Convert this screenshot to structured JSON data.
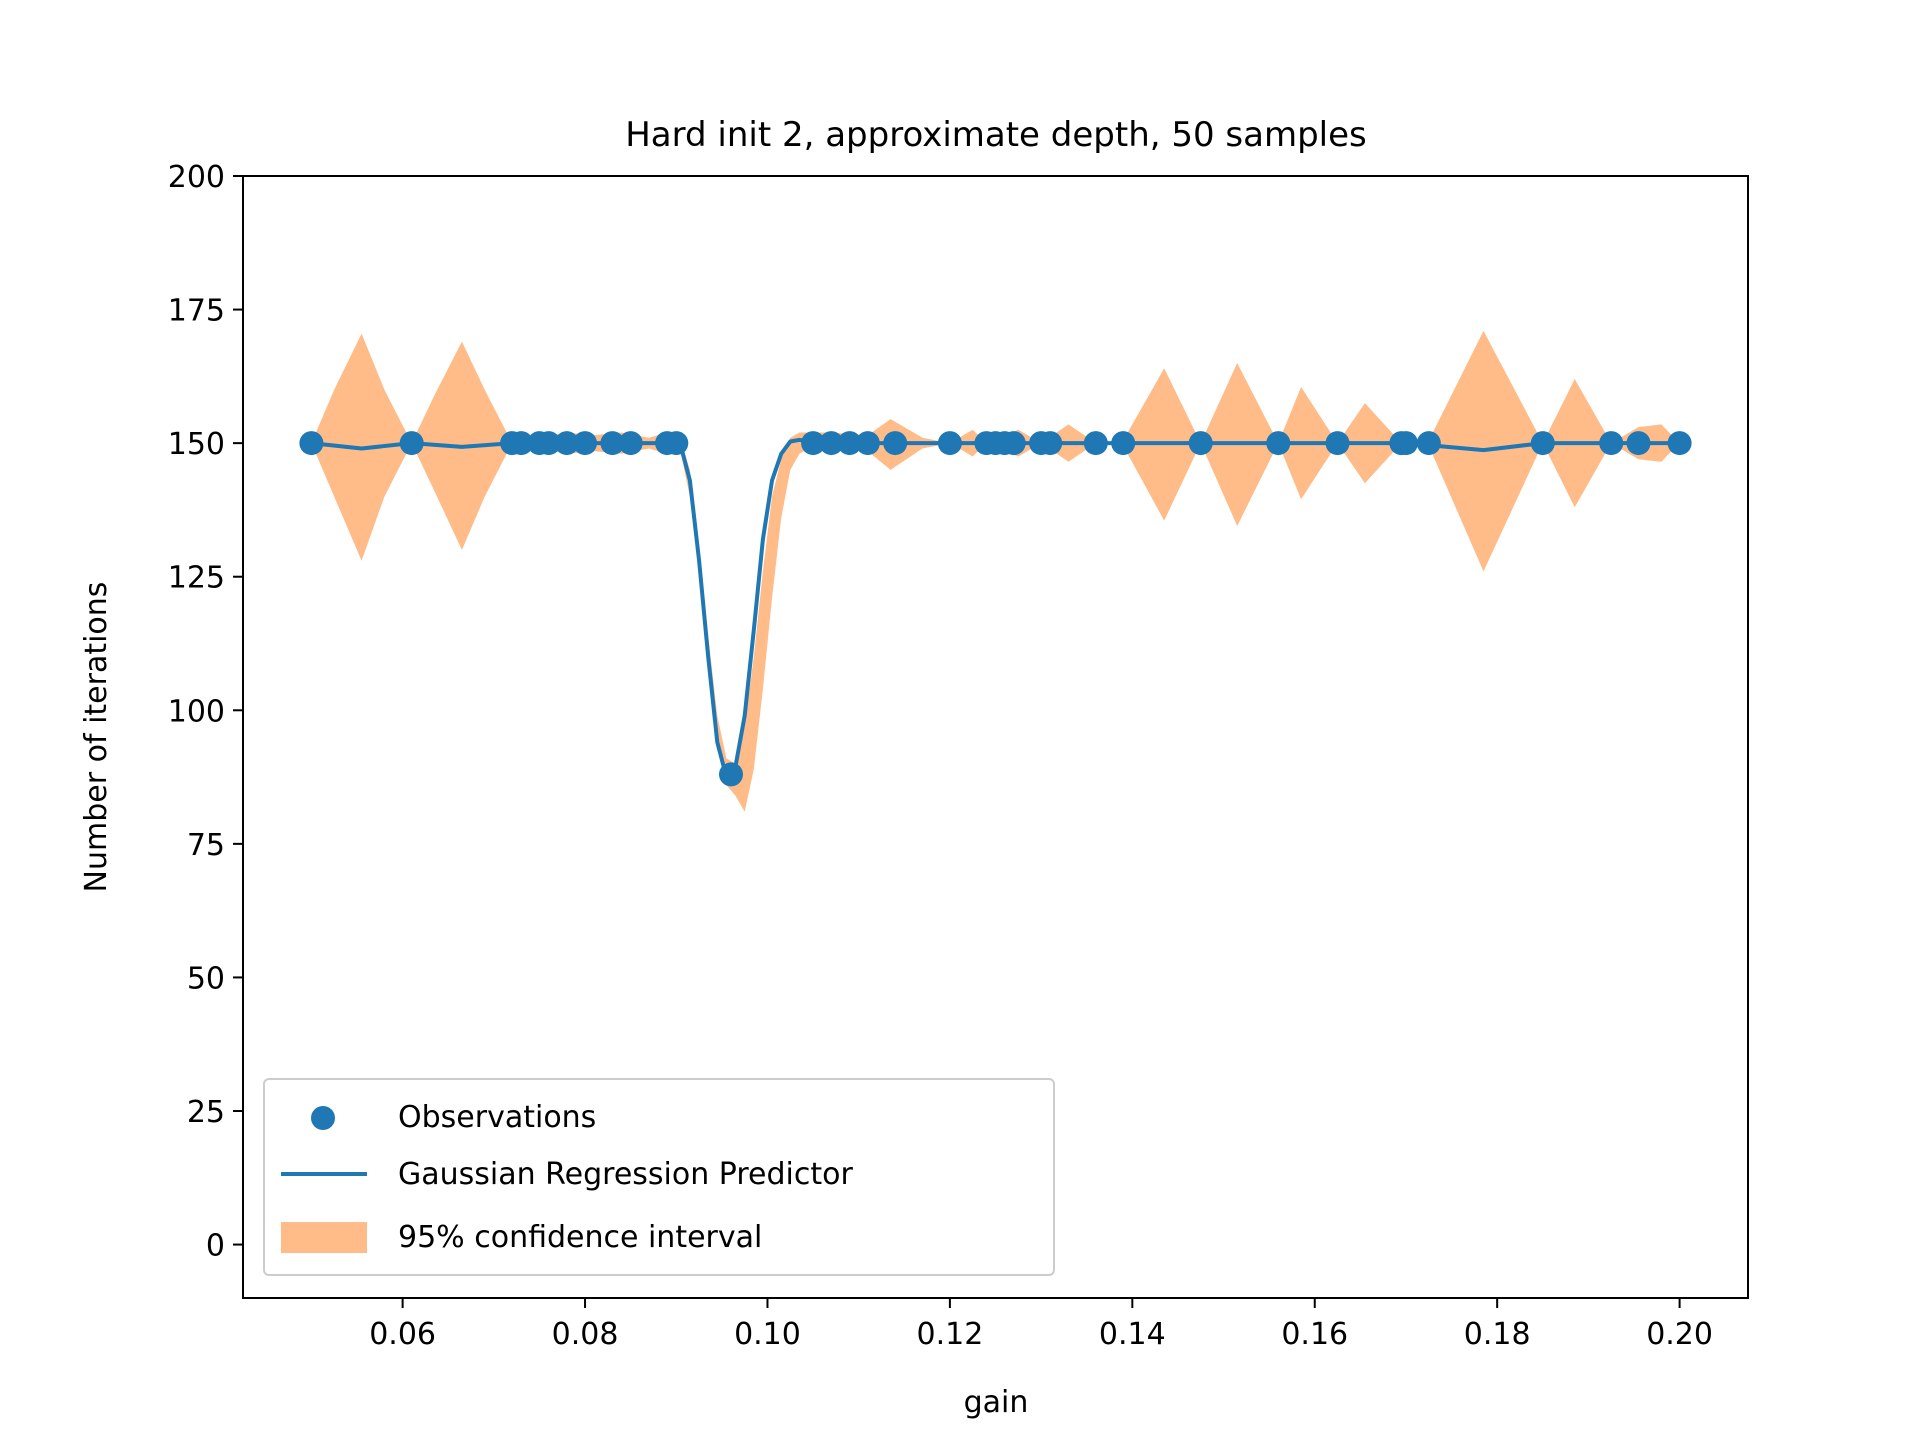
{
  "chart_data": {
    "type": "line",
    "title": "Hard init 2, approximate depth, 50 samples",
    "xlabel": "gain",
    "ylabel": "Number of iterations",
    "xlim": [
      0.0425,
      0.2075
    ],
    "ylim": [
      -10,
      200
    ],
    "xticks": [
      0.06,
      0.08,
      0.1,
      0.12,
      0.14,
      0.16,
      0.18,
      0.2
    ],
    "xtick_labels": [
      "0.06",
      "0.08",
      "0.10",
      "0.12",
      "0.14",
      "0.16",
      "0.18",
      "0.20"
    ],
    "yticks": [
      0,
      25,
      50,
      75,
      100,
      125,
      150,
      175,
      200
    ],
    "ytick_labels": [
      "0",
      "25",
      "50",
      "75",
      "100",
      "125",
      "150",
      "175",
      "200"
    ],
    "grid": false,
    "legend_position": "lower-left",
    "colors": {
      "observations": "#1f77b4",
      "predictor": "#1f77b4",
      "confidence": "#ffbb88"
    },
    "legend": [
      {
        "label": "Observations",
        "kind": "scatter"
      },
      {
        "label": "Gaussian Regression Predictor",
        "kind": "line"
      },
      {
        "label": "95% confidence interval",
        "kind": "area"
      }
    ],
    "observations": {
      "x": [
        0.05,
        0.061,
        0.072,
        0.073,
        0.075,
        0.076,
        0.078,
        0.08,
        0.083,
        0.085,
        0.089,
        0.09,
        0.096,
        0.105,
        0.107,
        0.109,
        0.111,
        0.114,
        0.12,
        0.124,
        0.125,
        0.126,
        0.127,
        0.13,
        0.131,
        0.136,
        0.139,
        0.1475,
        0.156,
        0.1625,
        0.1695,
        0.17,
        0.1725,
        0.185,
        0.1925,
        0.1955,
        0.2
      ],
      "y": [
        150,
        150,
        150,
        150,
        150,
        150,
        150,
        150,
        150,
        150,
        150,
        150,
        88,
        150,
        150,
        150,
        150,
        150,
        150,
        150,
        150,
        150,
        150,
        150,
        150,
        150,
        150,
        150,
        150,
        150,
        150,
        150,
        150,
        150,
        150,
        150,
        150
      ]
    },
    "predictor": {
      "x": [
        0.05,
        0.0555,
        0.061,
        0.0665,
        0.072,
        0.08,
        0.088,
        0.0895,
        0.0905,
        0.0915,
        0.0925,
        0.0935,
        0.0945,
        0.0955,
        0.096,
        0.0965,
        0.0975,
        0.0985,
        0.0995,
        0.1005,
        0.1015,
        0.1025,
        0.1035,
        0.1045,
        0.106,
        0.11,
        0.13,
        0.15,
        0.17,
        0.1785,
        0.185,
        0.2
      ],
      "y": [
        150,
        149.0,
        150,
        149.3,
        150,
        150,
        150,
        150.8,
        149.5,
        143,
        128,
        110,
        94,
        87.5,
        88,
        89.5,
        99,
        115,
        132,
        143,
        148,
        150.3,
        150.6,
        150.3,
        150,
        150,
        150,
        150,
        150,
        148.7,
        150,
        150
      ]
    },
    "confidence_interval": {
      "x": [
        0.05,
        0.0525,
        0.0555,
        0.058,
        0.061,
        0.0635,
        0.0665,
        0.069,
        0.072,
        0.075,
        0.078,
        0.081,
        0.084,
        0.087,
        0.089,
        0.0905,
        0.0915,
        0.0925,
        0.0935,
        0.0945,
        0.0955,
        0.0965,
        0.0975,
        0.0985,
        0.0995,
        0.1005,
        0.1015,
        0.1025,
        0.1035,
        0.1045,
        0.107,
        0.111,
        0.1135,
        0.117,
        0.12,
        0.1225,
        0.124,
        0.1275,
        0.13,
        0.133,
        0.136,
        0.139,
        0.1435,
        0.1475,
        0.1515,
        0.156,
        0.1585,
        0.1625,
        0.1655,
        0.1695,
        0.1725,
        0.1785,
        0.185,
        0.1885,
        0.1925,
        0.1955,
        0.198,
        0.2
      ],
      "upper": [
        150,
        160,
        170.5,
        160,
        150,
        159,
        169,
        160,
        150,
        151,
        152,
        151.5,
        152,
        151,
        152,
        150.5,
        145,
        131,
        114,
        99,
        91,
        90,
        97,
        110,
        126,
        140,
        147,
        151,
        152,
        152,
        152,
        151.5,
        154.5,
        151,
        150,
        152.5,
        150,
        152.5,
        150,
        153.5,
        150,
        150.5,
        164,
        150,
        165,
        150,
        160.5,
        150,
        157.5,
        150,
        150.5,
        171,
        150,
        162,
        150,
        153,
        153.5,
        150
      ],
      "lower": [
        150,
        140,
        128,
        140,
        150,
        141,
        130,
        140,
        150,
        149,
        148,
        148.5,
        148,
        149,
        148,
        148,
        140,
        125,
        108,
        93,
        86,
        84,
        81,
        89,
        104,
        121,
        136,
        145,
        148,
        149,
        149,
        148.5,
        145,
        149,
        150,
        147.5,
        150,
        147.5,
        150,
        146.5,
        150,
        149.5,
        135.5,
        150,
        134.5,
        150,
        139.5,
        150,
        142.5,
        150,
        149.5,
        126,
        150,
        138,
        150,
        147,
        146.5,
        150
      ]
    }
  }
}
